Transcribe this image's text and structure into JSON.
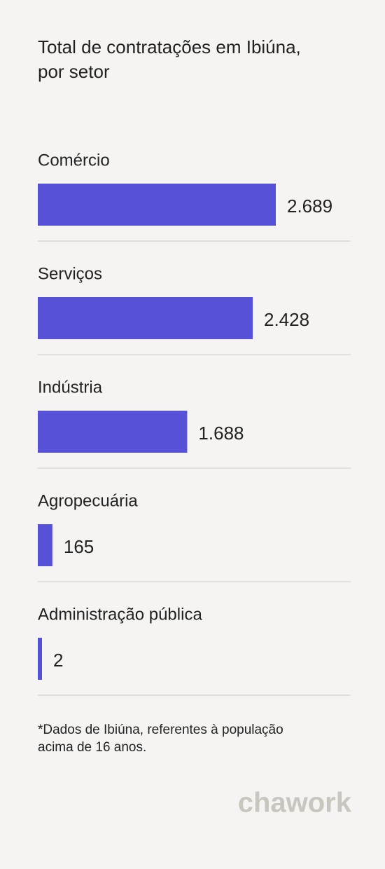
{
  "chart_data": {
    "type": "bar",
    "orientation": "horizontal",
    "title": "Total de contratações em Ibiúna,",
    "subtitle": "por setor",
    "categories": [
      "Comércio",
      "Serviços",
      "Indústria",
      "Agropecuária",
      "Administração pública"
    ],
    "values": [
      2689,
      2428,
      1688,
      165,
      2
    ],
    "value_labels": [
      "2.689",
      "2.428",
      "1.688",
      "165",
      "2"
    ],
    "color": "#5751d8",
    "footnote": [
      "*Dados de Ibiúna, referentes à população",
      "acima de 16 anos."
    ],
    "brand": "chawork"
  }
}
